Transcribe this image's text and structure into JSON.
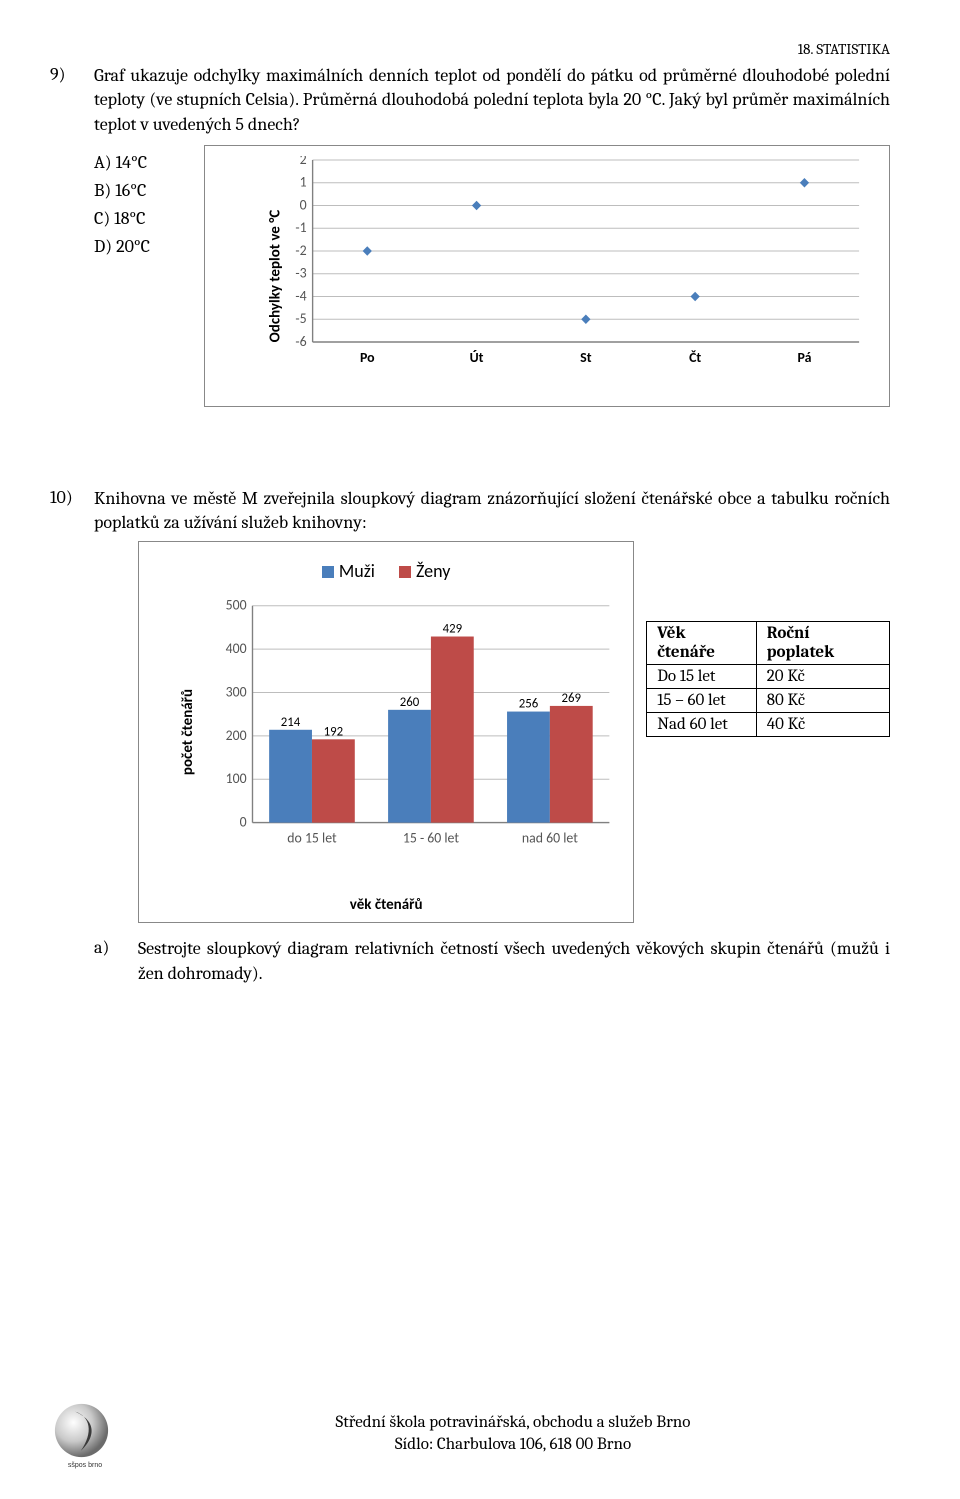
{
  "header": {
    "chapter": "18. STATISTIKA"
  },
  "q9": {
    "num": "9)",
    "prompt": "Graf ukazuje odchylky maximálních denních teplot od pondělí do pátku od průměrné dlouhodobé polední teploty (ve stupních Celsia). Průměrná dlouhodobá polední teplota byla 20 °C. Jaký byl průměr maximálních teplot v uvedených 5 dnech?",
    "options": [
      "A) 14°C",
      "B) 16°C",
      "C) 18°C",
      "D) 20°C"
    ],
    "chart": {
      "type": "scatter",
      "ylabel": "Odchylky teplot ve °C",
      "categories": [
        "Po",
        "Út",
        "St",
        "Čt",
        "Pá"
      ],
      "values": [
        -2,
        0,
        -5,
        -4,
        1
      ],
      "ylim": [
        -6,
        2
      ],
      "ytick_step": 1,
      "marker_color": "#4a7ebb",
      "marker_size": 8,
      "grid_color": "#bdbdbd",
      "axis_color": "#808080",
      "font": "Calibri, Arial, sans-serif",
      "tick_fontsize": 14
    }
  },
  "q10": {
    "num": "10)",
    "prompt": "Knihovna ve městě M zveřejnila sloupkový diagram znázorňující složení čtenářské obce a tabulku ročních poplatků za užívání služeb knihovny:",
    "bar": {
      "type": "bar",
      "legend": [
        {
          "label": "Muži",
          "color": "#4a7ebb"
        },
        {
          "label": "Ženy",
          "color": "#be4b48"
        }
      ],
      "ylabel": "počet čtenářů",
      "xlabel": "věk čtenářů",
      "categories": [
        "do 15 let",
        "15 - 60 let",
        "nad 60 let"
      ],
      "series": {
        "Muži": [
          214,
          260,
          256
        ],
        "Ženy": [
          192,
          429,
          269
        ]
      },
      "ylim": [
        0,
        500
      ],
      "ytick_step": 100,
      "bar_width": 0.36,
      "grid_color": "#bdbdbd",
      "axis_color": "#808080",
      "label_fontsize": 13,
      "tick_fontsize": 14,
      "font": "Calibri, Arial, sans-serif"
    },
    "table": {
      "headers": [
        "Věk čtenáře",
        "Roční poplatek"
      ],
      "rows": [
        [
          "Do 15 let",
          "20 Kč"
        ],
        [
          "15 – 60 let",
          "80 Kč"
        ],
        [
          "Nad 60 let",
          "40 Kč"
        ]
      ]
    },
    "sub_a": {
      "letter": "a)",
      "text": "Sestrojte sloupkový diagram relativních četností všech uvedených věkových skupin čtenářů (mužů i žen dohromady)."
    }
  },
  "footer": {
    "line1": "Střední škola potravinářská, obchodu a služeb Brno",
    "line2": "Sídlo: Charbulova 106, 618 00 Brno",
    "logo_label": "sšpos brno"
  }
}
